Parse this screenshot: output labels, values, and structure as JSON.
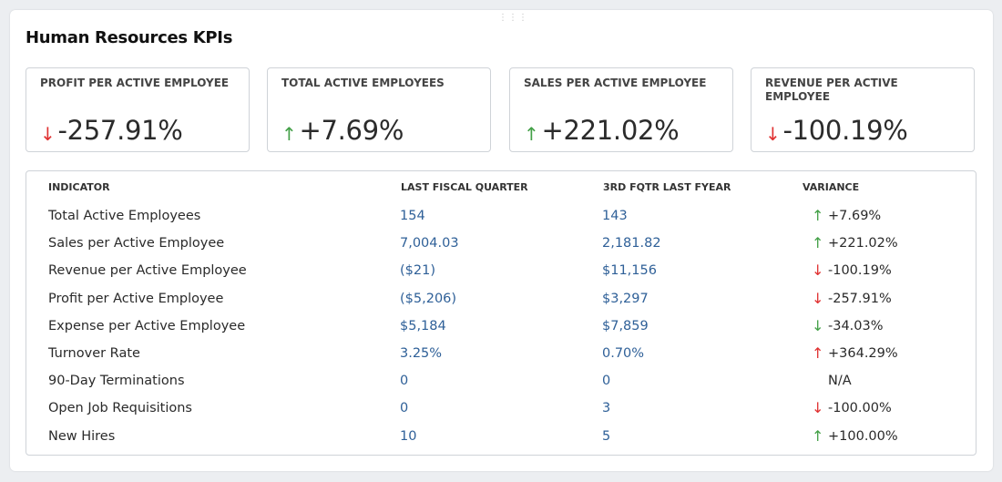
{
  "panel": {
    "title": "Human Resources KPIs"
  },
  "cards": [
    {
      "label": "PROFIT PER ACTIVE EMPLOYEE",
      "value": "-257.91%",
      "arrow": "down",
      "arrow_icon": "arrow-down-icon"
    },
    {
      "label": "TOTAL ACTIVE EMPLOYEES",
      "value": "+7.69%",
      "arrow": "up",
      "arrow_icon": "arrow-up-icon"
    },
    {
      "label": "SALES PER ACTIVE EMPLOYEE",
      "value": "+221.02%",
      "arrow": "up",
      "arrow_icon": "arrow-up-icon"
    },
    {
      "label": "REVENUE PER ACTIVE EMPLOYEE",
      "value": "-100.19%",
      "arrow": "down",
      "arrow_icon": "arrow-down-icon"
    }
  ],
  "colors": {
    "up": "#43a047",
    "down": "#e03131",
    "link_value": "#2f6098"
  },
  "table": {
    "headers": [
      "INDICATOR",
      "LAST FISCAL QUARTER",
      "3RD FQTR LAST FYEAR",
      "VARIANCE"
    ],
    "rows": [
      {
        "indicator": "Total Active Employees",
        "last_fq": "154",
        "prev": "143",
        "variance": "+7.69%",
        "arrow": "up-green"
      },
      {
        "indicator": "Sales per Active Employee",
        "last_fq": "7,004.03",
        "prev": "2,181.82",
        "variance": "+221.02%",
        "arrow": "up-green"
      },
      {
        "indicator": "Revenue per Active Employee",
        "last_fq": "($21)",
        "prev": "$11,156",
        "variance": "-100.19%",
        "arrow": "down-red"
      },
      {
        "indicator": "Profit per Active Employee",
        "last_fq": "($5,206)",
        "prev": "$3,297",
        "variance": "-257.91%",
        "arrow": "down-red"
      },
      {
        "indicator": "Expense per Active Employee",
        "last_fq": "$5,184",
        "prev": "$7,859",
        "variance": "-34.03%",
        "arrow": "down-green"
      },
      {
        "indicator": "Turnover Rate",
        "last_fq": "3.25%",
        "prev": "0.70%",
        "variance": "+364.29%",
        "arrow": "up-red"
      },
      {
        "indicator": "90-Day Terminations",
        "last_fq": "0",
        "prev": "0",
        "variance": "N/A",
        "arrow": "none"
      },
      {
        "indicator": "Open Job Requisitions",
        "last_fq": "0",
        "prev": "3",
        "variance": "-100.00%",
        "arrow": "down-red"
      },
      {
        "indicator": "New Hires",
        "last_fq": "10",
        "prev": "5",
        "variance": "+100.00%",
        "arrow": "up-green"
      }
    ]
  }
}
